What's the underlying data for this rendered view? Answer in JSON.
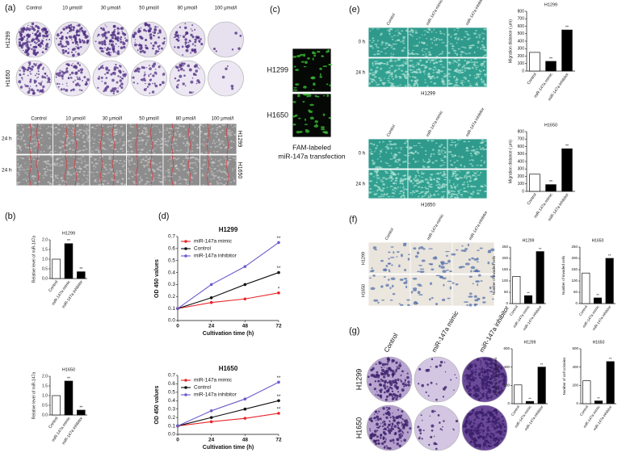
{
  "panels": {
    "a": {
      "label": "(a)",
      "columns": [
        "Control",
        "10 μmol/l",
        "30 μmol/l",
        "50 μmol/l",
        "80 μmol/l",
        "100 μmol/l"
      ],
      "rows": [
        "H1299",
        "H1650"
      ],
      "wound_columns": [
        "Control",
        "10 μmol/l",
        "30 μmol/l",
        "50 μmol/l",
        "80 μmol/l",
        "100 μmol/l"
      ],
      "wound_times": [
        "24 h",
        "24 h"
      ],
      "wound_cells": [
        "H1299",
        "H1650"
      ]
    },
    "b": {
      "label": "(b)"
    },
    "c": {
      "label": "(c)",
      "rows": [
        "H1299",
        "H1650"
      ],
      "caption": [
        "FAM-labeled",
        "miR-147a transfection"
      ]
    },
    "d": {
      "label": "(d)"
    },
    "e": {
      "label": "(e)",
      "columns": [
        "Control",
        "miR-147a mimic",
        "miR-147a inhibitor"
      ],
      "times": [
        "0 h",
        "24 h"
      ],
      "cells": [
        "H1299",
        "H1650"
      ]
    },
    "f": {
      "label": "(f)",
      "columns": [
        "Control",
        "miR-147a mimic",
        "miR-147a inhibitor"
      ],
      "rows": [
        "H1299",
        "H1650"
      ]
    },
    "g": {
      "label": "(g)",
      "columns": [
        "Control",
        "miR-147a mimic",
        "miR-147a inhibitor"
      ],
      "rows": [
        "H1299",
        "H1650"
      ]
    }
  },
  "chart_data": [
    {
      "type": "bar",
      "title": "H1299",
      "ylabel": "Relative level of miR-147a",
      "categories": [
        "Control",
        "miR-147a mimic",
        "miR-147a inhibitor"
      ],
      "values": [
        1,
        1.8,
        0.35
      ],
      "bar_colors": [
        "#ffffff",
        "#000000",
        "#000000"
      ],
      "annotations": [
        null,
        "**",
        "**"
      ],
      "ylim": [
        0,
        2
      ],
      "yticks": [
        {
          "value": 0,
          "label": "0.0"
        },
        0.5,
        {
          "value": 1,
          "label": "1.0"
        },
        1.5,
        {
          "value": 2,
          "label": "2.0"
        }
      ]
    },
    {
      "type": "bar",
      "title": "H1650",
      "ylabel": "Relative level of miR-147a",
      "categories": [
        "Control",
        "miR-147a mimic",
        "miR-147a inhibitor"
      ],
      "values": [
        1,
        1.75,
        0.25
      ],
      "bar_colors": [
        "#ffffff",
        "#000000",
        "#000000"
      ],
      "annotations": [
        null,
        "**",
        "**"
      ],
      "ylim": [
        0,
        2
      ],
      "yticks": [
        {
          "value": 0,
          "label": "0.0"
        },
        0.5,
        {
          "value": 1,
          "label": "1.0"
        },
        1.5,
        {
          "value": 2,
          "label": "2.0"
        }
      ]
    },
    {
      "type": "line",
      "title": "H1299",
      "xlabel": "Cultivation time (h)",
      "ylabel": "OD 450 values",
      "x": [
        0,
        24,
        48,
        72
      ],
      "xlim": [
        0,
        72
      ],
      "xticks": [
        0,
        24,
        48,
        72
      ],
      "ylim": [
        0,
        0.7
      ],
      "yticks": [
        {
          "value": 0,
          "label": "0.0"
        },
        0.1,
        0.2,
        0.3,
        0.4,
        0.5,
        0.6,
        0.7
      ],
      "series": [
        {
          "name": "miR-147a mimic",
          "color": "#e8262b",
          "values": [
            0.1,
            0.15,
            0.18,
            0.23
          ],
          "end_label": "*"
        },
        {
          "name": "Control",
          "color": "#111111",
          "values": [
            0.1,
            0.19,
            0.3,
            0.4
          ],
          "end_label": "**"
        },
        {
          "name": "miR-147a inhibitor",
          "color": "#6a5acd",
          "values": [
            0.1,
            0.3,
            0.45,
            0.65
          ],
          "end_label": "**"
        }
      ]
    },
    {
      "type": "line",
      "title": "H1650",
      "xlabel": "Cultivation time (h)",
      "ylabel": "OD 450 values",
      "x": [
        0,
        24,
        48,
        72
      ],
      "xlim": [
        0,
        72
      ],
      "xticks": [
        0,
        24,
        48,
        72
      ],
      "ylim": [
        0,
        0.7
      ],
      "yticks": [
        {
          "value": 0,
          "label": "0.0"
        },
        0.1,
        0.2,
        0.3,
        0.4,
        0.5,
        0.6,
        0.7
      ],
      "series": [
        {
          "name": "miR-147a mimic",
          "color": "#e8262b",
          "values": [
            0.1,
            0.15,
            0.19,
            0.25
          ],
          "end_label": "**"
        },
        {
          "name": "Control",
          "color": "#111111",
          "values": [
            0.1,
            0.2,
            0.3,
            0.4
          ],
          "end_label": "**"
        },
        {
          "name": "miR-147a inhibitor",
          "color": "#6a5acd",
          "values": [
            0.1,
            0.28,
            0.42,
            0.62
          ],
          "end_label": "**"
        }
      ]
    },
    {
      "type": "bar",
      "title": "H1299",
      "ylabel": "Migration distance ( μm)",
      "categories": [
        "Control",
        "miR-147a mimic",
        "miR-147a inhibitor"
      ],
      "values": [
        250,
        130,
        550
      ],
      "bar_colors": [
        "#ffffff",
        "#000000",
        "#000000"
      ],
      "annotations": [
        null,
        "**",
        "**"
      ],
      "ylim": [
        0,
        800
      ],
      "yticks": [
        0,
        100,
        200,
        300,
        400,
        500,
        600,
        700,
        800
      ]
    },
    {
      "type": "bar",
      "title": "H1650",
      "ylabel": "Migration distance ( μm)",
      "categories": [
        "Control",
        "miR-147a mimic",
        "miR-147a inhibitor"
      ],
      "values": [
        230,
        90,
        570
      ],
      "bar_colors": [
        "#ffffff",
        "#000000",
        "#000000"
      ],
      "annotations": [
        null,
        "**",
        "**"
      ],
      "ylim": [
        0,
        800
      ],
      "yticks": [
        0,
        100,
        200,
        300,
        400,
        500,
        600,
        700,
        800
      ]
    },
    {
      "type": "bar",
      "title": "H1299",
      "ylabel": "Number of invaded cells",
      "categories": [
        "Control",
        "miR-147a mimic",
        "miR-147a inhibitor"
      ],
      "values": [
        120,
        35,
        230
      ],
      "bar_colors": [
        "#ffffff",
        "#000000",
        "#000000"
      ],
      "annotations": [
        null,
        "**",
        "**"
      ],
      "ylim": [
        0,
        250
      ],
      "yticks": [
        0,
        50,
        100,
        150,
        200,
        250
      ]
    },
    {
      "type": "bar",
      "title": "H1650",
      "ylabel": "Number of invaded cells",
      "categories": [
        "Control",
        "miR-147a mimic",
        "miR-147a inhibitor"
      ],
      "values": [
        135,
        25,
        200
      ],
      "bar_colors": [
        "#ffffff",
        "#000000",
        "#000000"
      ],
      "annotations": [
        null,
        "**",
        "**"
      ],
      "ylim": [
        0,
        250
      ],
      "yticks": [
        0,
        50,
        100,
        150,
        200,
        250
      ]
    },
    {
      "type": "bar",
      "title": "H1299",
      "ylabel": "Number of cell colonies",
      "categories": [
        "Control",
        "miR-147a mimic",
        "miR-147a inhibitor"
      ],
      "values": [
        205,
        25,
        400
      ],
      "bar_colors": [
        "#ffffff",
        "#000000",
        "#000000"
      ],
      "annotations": [
        null,
        "**",
        "**"
      ],
      "ylim": [
        0,
        600
      ],
      "yticks": [
        0,
        200,
        400,
        600
      ]
    },
    {
      "type": "bar",
      "title": "H1650",
      "ylabel": "Number of cell colonies",
      "categories": [
        "Control",
        "miR-147a mimic",
        "miR-147a inhibitor"
      ],
      "values": [
        250,
        30,
        460
      ],
      "bar_colors": [
        "#ffffff",
        "#000000",
        "#000000"
      ],
      "annotations": [
        null,
        "**",
        "**"
      ],
      "ylim": [
        0,
        600
      ],
      "yticks": [
        0,
        200,
        400,
        600
      ]
    }
  ]
}
